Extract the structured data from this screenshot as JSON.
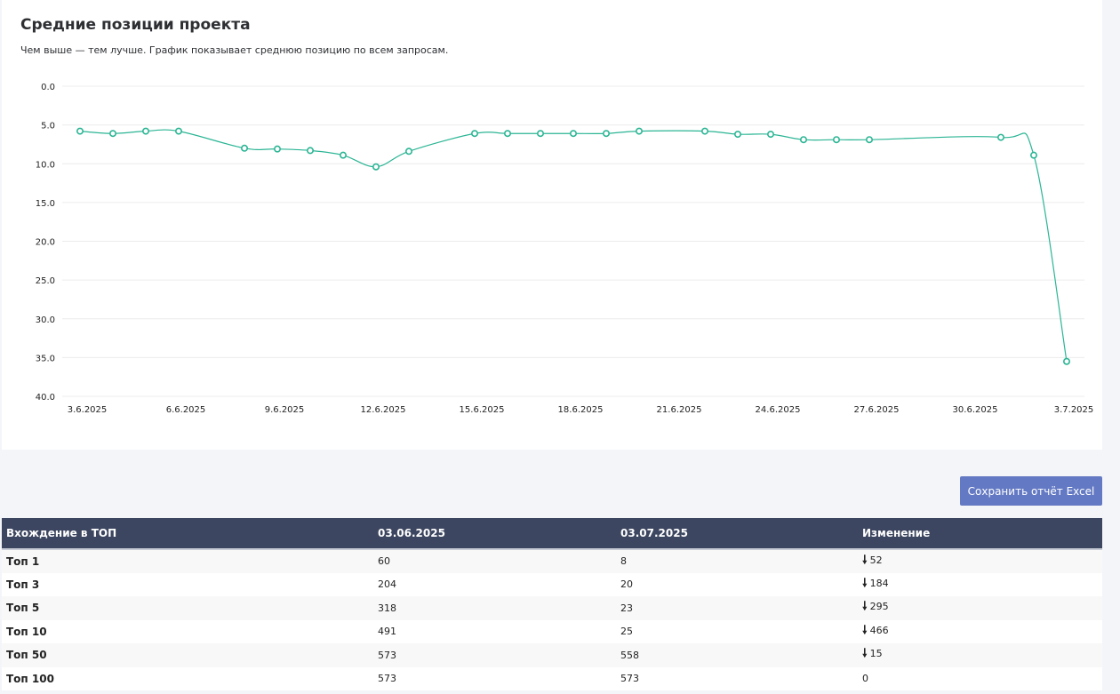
{
  "chart_data": {
    "type": "line",
    "title": "Средние позиции проекта",
    "subtitle": "Чем выше — тем лучше. График показывает среднюю позицию по всем запросам.",
    "xlabel": "",
    "ylabel": "",
    "y_inverted": true,
    "ylim": [
      0,
      40
    ],
    "y_ticks": [
      "0.0",
      "5.0",
      "10.0",
      "15.0",
      "20.0",
      "25.0",
      "30.0",
      "35.0",
      "40.0"
    ],
    "x_tick_labels": [
      "3.6.2025",
      "6.6.2025",
      "9.6.2025",
      "12.6.2025",
      "15.6.2025",
      "18.6.2025",
      "21.6.2025",
      "24.6.2025",
      "27.6.2025",
      "30.6.2025",
      "3.7.2025"
    ],
    "grid": true,
    "line_color": "#2bb594",
    "series": [
      {
        "points": [
          {
            "x": "2025-06-03",
            "y": 5.8
          },
          {
            "x": "2025-06-04",
            "y": 6.1
          },
          {
            "x": "2025-06-05",
            "y": 5.8
          },
          {
            "x": "2025-06-06",
            "y": 5.8
          },
          {
            "x": "2025-06-08",
            "y": 8.0
          },
          {
            "x": "2025-06-09",
            "y": 8.1
          },
          {
            "x": "2025-06-10",
            "y": 8.3
          },
          {
            "x": "2025-06-11",
            "y": 8.9
          },
          {
            "x": "2025-06-12",
            "y": 10.4
          },
          {
            "x": "2025-06-13",
            "y": 8.4
          },
          {
            "x": "2025-06-15",
            "y": 6.1
          },
          {
            "x": "2025-06-16",
            "y": 6.1
          },
          {
            "x": "2025-06-17",
            "y": 6.1
          },
          {
            "x": "2025-06-18",
            "y": 6.1
          },
          {
            "x": "2025-06-19",
            "y": 6.1
          },
          {
            "x": "2025-06-20",
            "y": 5.8
          },
          {
            "x": "2025-06-22",
            "y": 5.8
          },
          {
            "x": "2025-06-23",
            "y": 6.2
          },
          {
            "x": "2025-06-24",
            "y": 6.2
          },
          {
            "x": "2025-06-25",
            "y": 6.9
          },
          {
            "x": "2025-06-26",
            "y": 6.9
          },
          {
            "x": "2025-06-27",
            "y": 6.9
          },
          {
            "x": "2025-07-01",
            "y": 6.6
          },
          {
            "x": "2025-07-02",
            "y": 8.9
          },
          {
            "x": "2025-07-03",
            "y": 35.5
          }
        ]
      }
    ]
  },
  "toolbar": {
    "excel_label": "Сохранить отчёт Excel"
  },
  "table": {
    "headers": [
      "Вхождение в ТОП",
      "03.06.2025",
      "03.07.2025",
      "Изменение"
    ],
    "rows": [
      {
        "label": "Топ 1",
        "start": "60",
        "end": "8",
        "arrow": "🠗",
        "change": "52",
        "down": true
      },
      {
        "label": "Топ 3",
        "start": "204",
        "end": "20",
        "arrow": "🠗",
        "change": "184",
        "down": true
      },
      {
        "label": "Топ 5",
        "start": "318",
        "end": "23",
        "arrow": "🠗",
        "change": "295",
        "down": true
      },
      {
        "label": "Топ 10",
        "start": "491",
        "end": "25",
        "arrow": "🠗",
        "change": "466",
        "down": true
      },
      {
        "label": "Топ 50",
        "start": "573",
        "end": "558",
        "arrow": "🠗",
        "change": "15",
        "down": true
      },
      {
        "label": "Топ 100",
        "start": "573",
        "end": "573",
        "arrow": "",
        "change": "0",
        "down": false
      }
    ]
  }
}
